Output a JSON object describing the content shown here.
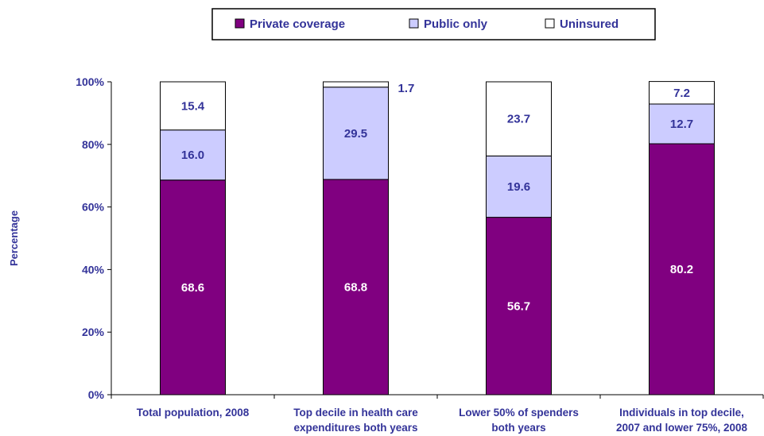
{
  "chart_data": {
    "type": "bar",
    "stacked": true,
    "categories": [
      [
        "Total population, 2008"
      ],
      [
        "Top decile in health care",
        "expenditures both years"
      ],
      [
        "Lower 50% of spenders",
        "both years"
      ],
      [
        "Individuals in top decile,",
        "2007 and lower 75%, 2008"
      ]
    ],
    "series": [
      {
        "name": "Private coverage",
        "color": "#800080",
        "label_color": "#ffffff",
        "values": [
          68.6,
          68.8,
          56.7,
          80.2
        ]
      },
      {
        "name": "Public only",
        "color": "#ccccff",
        "label_color": "#333399",
        "values": [
          16.0,
          29.5,
          19.6,
          12.7
        ]
      },
      {
        "name": "Uninsured",
        "color": "#ffffff",
        "label_color": "#333399",
        "values": [
          15.4,
          1.7,
          23.7,
          7.2
        ]
      }
    ],
    "value_labels": [
      [
        "68.6",
        "68.8",
        "56.7",
        "80.2"
      ],
      [
        "16.0",
        "29.5",
        "19.6",
        "12.7"
      ],
      [
        "15.4",
        "1.7",
        "23.7",
        "7.2"
      ]
    ],
    "ylabel": "Percentage",
    "ylim": [
      0,
      100
    ],
    "yticks": [
      "0%",
      "20%",
      "40%",
      "60%",
      "80%",
      "100%"
    ],
    "grid": false,
    "legend_position": "top"
  }
}
